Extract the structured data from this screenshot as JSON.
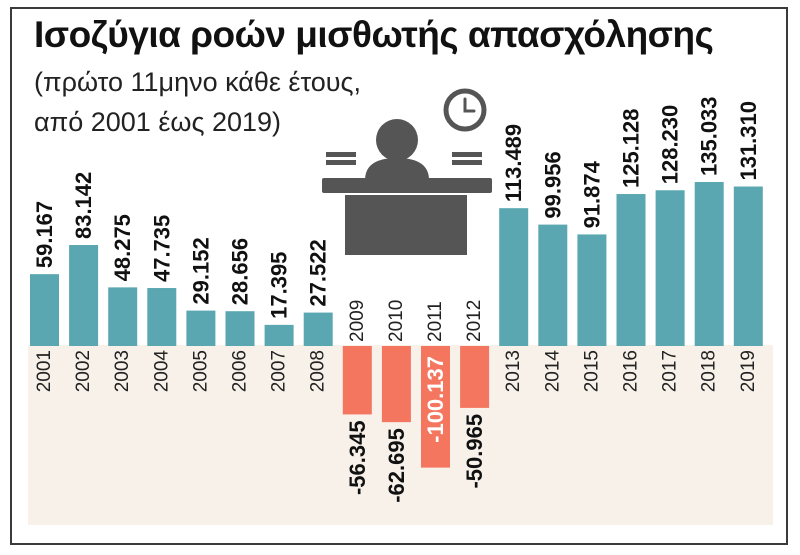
{
  "title": "Ισοζύγια ροών μισθωτής απασχόλησης",
  "subtitle": "(πρώτο 11μηνο κάθε έτους, από 2001 έως 2019)",
  "colors": {
    "positive": "#5ba7b1",
    "negative": "#f4765e",
    "background_band": "#f8f1ea",
    "icon": "#555555",
    "text": "#111111"
  },
  "icon": "office-worker-desk-clock-icon",
  "chart_data": {
    "type": "bar",
    "title": "Ισοζύγια ροών μισθωτής απασχόλησης",
    "subtitle": "(πρώτο 11μηνο κάθε έτους, από 2001 έως 2019)",
    "xlabel": "",
    "ylabel": "",
    "categories": [
      "2001",
      "2002",
      "2003",
      "2004",
      "2005",
      "2006",
      "2007",
      "2008",
      "2009",
      "2010",
      "2011",
      "2012",
      "2013",
      "2014",
      "2015",
      "2016",
      "2017",
      "2018",
      "2019"
    ],
    "values": [
      59167,
      83142,
      48275,
      47735,
      29152,
      28656,
      17395,
      27522,
      -56345,
      -62695,
      -100137,
      -50965,
      113489,
      99956,
      91874,
      125128,
      128230,
      135033,
      131310
    ],
    "labels": [
      "59.167",
      "83.142",
      "48.275",
      "47.735",
      "29.152",
      "28.656",
      "17.395",
      "27.522",
      "-56.345",
      "-62.695",
      "-100.137",
      "-50.965",
      "113.489",
      "99.956",
      "91.874",
      "125.128",
      "128.230",
      "135.033",
      "131.310"
    ],
    "grid": false,
    "legend": "none"
  }
}
